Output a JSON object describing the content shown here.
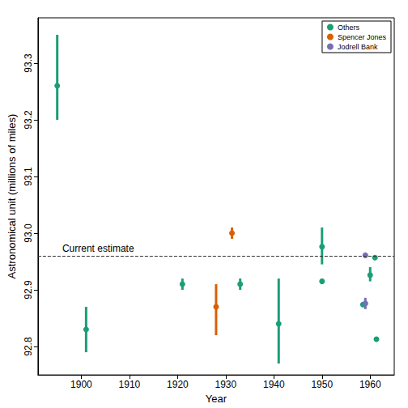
{
  "chart_data": {
    "type": "scatter",
    "x_label": "Year",
    "y_label": "Astronomical unit (millions of miles)",
    "xlim": [
      1891,
      1965
    ],
    "xticks": [
      1900,
      1910,
      1920,
      1930,
      1940,
      1950,
      1960
    ],
    "ylim": [
      92.75,
      93.38
    ],
    "yticks": [
      92.8,
      92.9,
      {
        "value": 93,
        "label": "93.0"
      },
      93.1,
      93.2,
      93.3
    ],
    "grid": false,
    "legend": "top-right",
    "marker": "circle",
    "hline": {
      "value": 92.956,
      "label": "Current estimate",
      "line_style": "dashed"
    },
    "series": [
      {
        "name": "Others",
        "color": "#1b9e77",
        "x": [
          1895,
          1901,
          1921,
          1933,
          1941,
          1950,
          1950,
          1958.5,
          1960,
          1961,
          1961.3
        ],
        "values": [
          93.26,
          92.83,
          92.91,
          92.91,
          92.84,
          92.976,
          92.915,
          92.874,
          92.926,
          92.957,
          92.813
        ],
        "lower": [
          93.2,
          92.79,
          92.9,
          92.9,
          92.77,
          92.945,
          92.91,
          92.872,
          92.915,
          92.955,
          92.81
        ],
        "upper": [
          93.35,
          92.87,
          92.92,
          92.92,
          92.92,
          93.01,
          92.92,
          92.876,
          92.94,
          92.959,
          92.816
        ]
      },
      {
        "name": "Spencer Jones",
        "color": "#d95f02",
        "x": [
          1928,
          1931.3
        ],
        "values": [
          92.87,
          93.0
        ],
        "lower": [
          92.82,
          92.99
        ],
        "upper": [
          92.91,
          93.01
        ]
      },
      {
        "name": "Jodrell Bank",
        "color": "#7570b3",
        "x": [
          1959,
          1959
        ],
        "values": [
          92.961,
          92.876
        ],
        "lower": [
          92.959,
          92.866
        ],
        "upper": [
          92.963,
          92.886
        ]
      }
    ]
  }
}
